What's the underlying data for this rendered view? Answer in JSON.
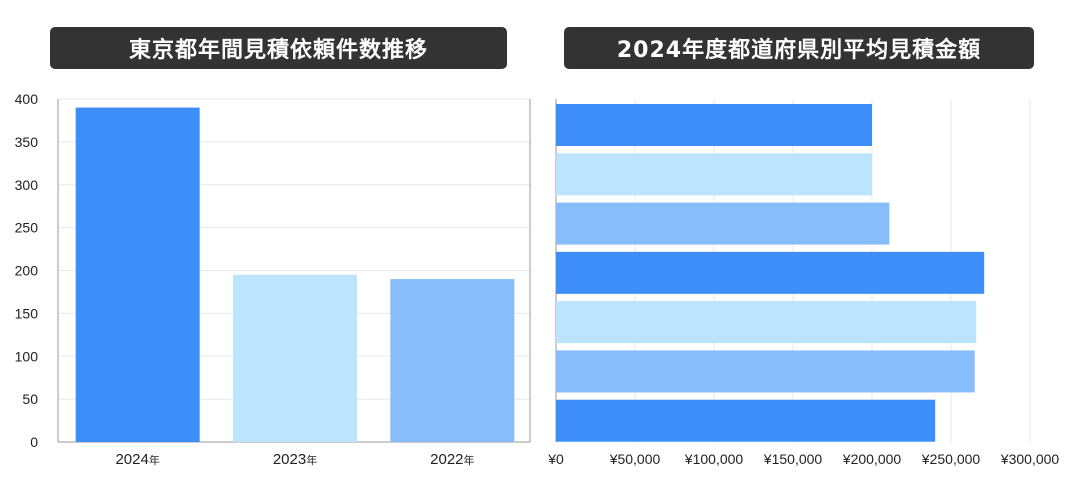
{
  "chart_data": [
    {
      "type": "bar",
      "title": "東京都年間見積依頼件数推移",
      "categories": [
        "2024",
        "2023",
        "2022"
      ],
      "category_suffix": "年",
      "values": [
        390,
        195,
        190
      ],
      "ylim": [
        0,
        400
      ],
      "yticks": [
        0,
        50,
        100,
        150,
        200,
        250,
        300,
        350,
        400
      ],
      "grid": true,
      "colors": [
        "#3d8ef9",
        "#bde4fd",
        "#88bdfc"
      ]
    },
    {
      "type": "bar",
      "orientation": "horizontal",
      "title": "2024年度都道府県別平均見積金額",
      "values": [
        200000,
        200000,
        211000,
        271000,
        266000,
        265000,
        240000
      ],
      "xlim": [
        0,
        300000
      ],
      "xticks": [
        0,
        50000,
        100000,
        150000,
        200000,
        250000,
        300000
      ],
      "xtick_labels": [
        "¥0",
        "¥50,000",
        "¥100,000",
        "¥150,000",
        "¥200,000",
        "¥250,000",
        "¥300,000"
      ],
      "grid": true,
      "colors": [
        "#3d8ef9",
        "#bde4fd",
        "#88bdfc",
        "#3d8ef9",
        "#bde4fd",
        "#88bdfc",
        "#3d8ef9"
      ]
    }
  ]
}
